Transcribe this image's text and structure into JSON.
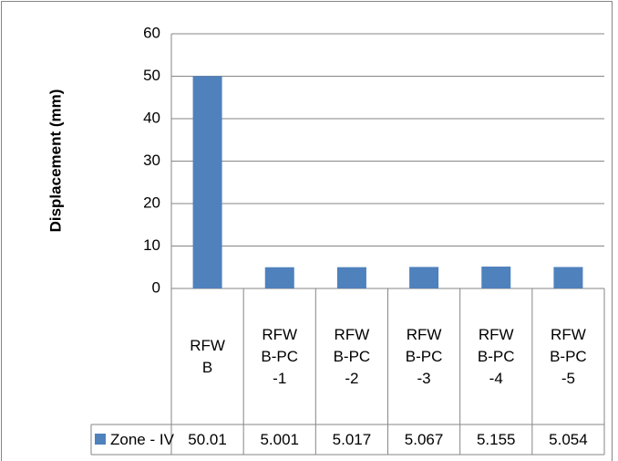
{
  "chart_data": {
    "type": "bar",
    "y_label": "Displacement (mm)",
    "categories": [
      "RFWB",
      "RFWB-PC-1",
      "RFWB-PC-2",
      "RFWB-PC-3",
      "RFWB-PC-4",
      "RFWB-PC-5"
    ],
    "series": [
      {
        "name": "Zone - IV",
        "color": "#4f81bd",
        "values": [
          50.01,
          5.001,
          5.017,
          5.067,
          5.155,
          5.054
        ]
      }
    ],
    "ylim": [
      0,
      60
    ],
    "yticks": [
      0,
      10,
      20,
      30,
      40,
      50,
      60
    ],
    "grid": true,
    "data_table": true
  }
}
